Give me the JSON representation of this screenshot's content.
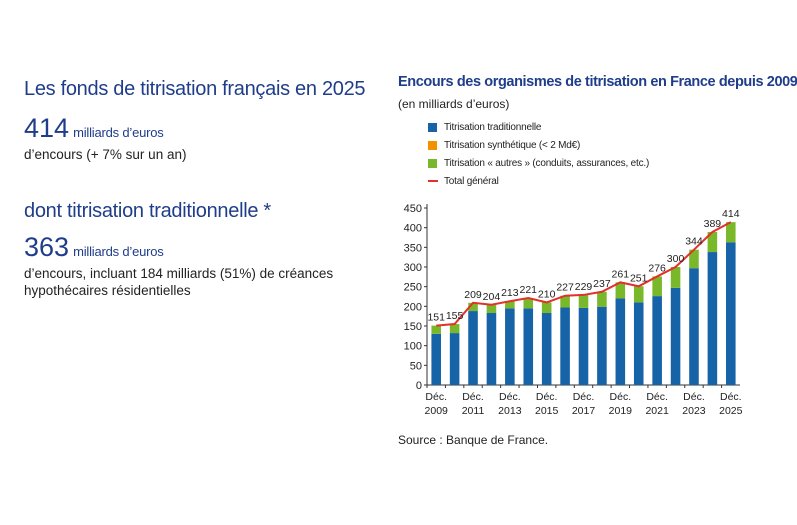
{
  "left_panel": {
    "heading1": "Les fonds de titrisation français en 2025",
    "value1": "414",
    "value1_unit": "milliards d’euros",
    "value1_desc": "d’encours (+ 7% sur un an)",
    "heading2": "dont titrisation traditionnelle *",
    "value2": "363",
    "value2_unit": "milliards d’euros",
    "value2_desc": "d’encours, incluant 184 milliards (51%) de créances hypothécaires résidentielles"
  },
  "chart_panel": {
    "title": "Encours des organismes de titrisation en France depuis 2009",
    "subtitle": "(en milliards d’euros)",
    "source": "Source : Banque de France."
  },
  "colors": {
    "traditional": "#1763a8",
    "synthetic": "#f39200",
    "other": "#7ab82b",
    "total": "#e2302a",
    "title_blue": "#1f3d8a"
  },
  "chart_data": {
    "type": "bar",
    "stacked": true,
    "title": "Encours des organismes de titrisation en France depuis 2009",
    "subtitle": "(en milliards d’euros)",
    "categories": [
      "2009",
      "2010",
      "2011",
      "2012",
      "2013",
      "2014",
      "2015",
      "2016",
      "2017",
      "2018",
      "2019",
      "2020",
      "2021",
      "2022",
      "2023",
      "2024",
      "2025"
    ],
    "x_tick_labels": [
      {
        "line1": "Déc.",
        "line2": "2009",
        "index": 0
      },
      {
        "line1": "Déc.",
        "line2": "2011",
        "index": 2
      },
      {
        "line1": "Déc.",
        "line2": "2013",
        "index": 4
      },
      {
        "line1": "Déc.",
        "line2": "2015",
        "index": 6
      },
      {
        "line1": "Déc.",
        "line2": "2017",
        "index": 8
      },
      {
        "line1": "Déc.",
        "line2": "2019",
        "index": 10
      },
      {
        "line1": "Déc.",
        "line2": "2021",
        "index": 12
      },
      {
        "line1": "Déc.",
        "line2": "2023",
        "index": 14
      },
      {
        "line1": "Déc.",
        "line2": "2025",
        "index": 16
      }
    ],
    "y_ticks": [
      0,
      50,
      100,
      150,
      200,
      250,
      300,
      350,
      400,
      450
    ],
    "ylim": [
      0,
      450
    ],
    "series": [
      {
        "name": "Titrisation traditionnelle",
        "color_key": "traditional",
        "values": [
          130,
          132,
          188,
          183,
          195,
          195,
          183,
          197,
          196,
          199,
          220,
          210,
          226,
          247,
          297,
          338,
          363
        ]
      },
      {
        "name": "Titrisation synthétique (< 2 Md€)",
        "color_key": "synthetic",
        "values": [
          0,
          0,
          0,
          0,
          0,
          0,
          0,
          0,
          0,
          0,
          0,
          0,
          0,
          0,
          0,
          0,
          0
        ]
      },
      {
        "name": "Titrisation « autres » (conduits, assurances, etc.)",
        "color_key": "other",
        "values": [
          21,
          23,
          21,
          21,
          18,
          26,
          27,
          30,
          33,
          38,
          41,
          41,
          50,
          53,
          47,
          51,
          51
        ]
      }
    ],
    "total": {
      "name": "Total général",
      "color_key": "total",
      "values": [
        151,
        155,
        209,
        204,
        213,
        221,
        210,
        227,
        229,
        237,
        261,
        251,
        276,
        300,
        344,
        389,
        414
      ]
    },
    "grid": false,
    "legend_position": "top"
  }
}
